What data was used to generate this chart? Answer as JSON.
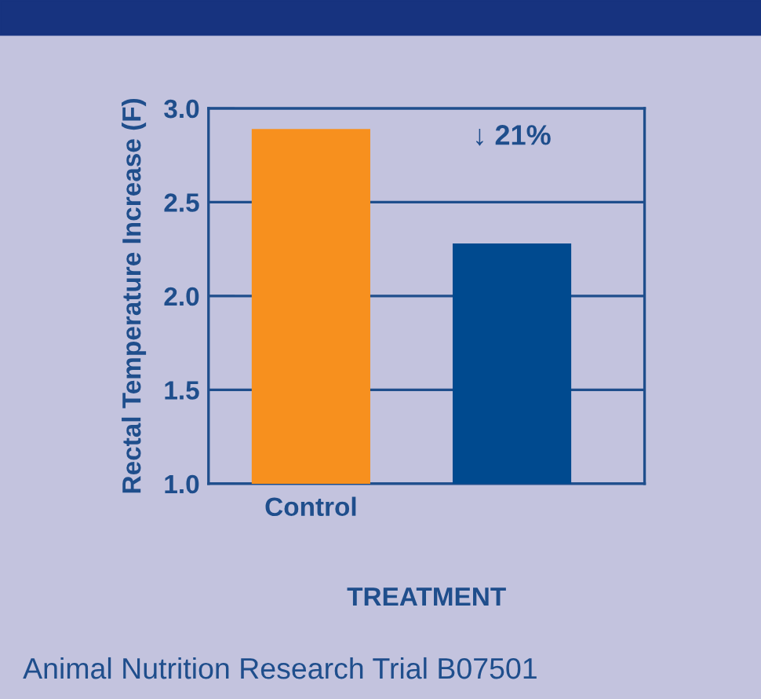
{
  "chart_data": {
    "type": "bar",
    "categories": [
      "Control",
      null
    ],
    "values": [
      2.89,
      2.28
    ],
    "colors": [
      "#f7901e",
      "#004a8f"
    ],
    "ylabel": "Rectal Temperature Increase (F)",
    "xlabel": "TREATMENT",
    "ylim": [
      1.0,
      3.0
    ],
    "yticks": [
      {
        "value": 1.0,
        "label": "1.0"
      },
      {
        "value": 1.5,
        "label": "1.5"
      },
      {
        "value": 2.0,
        "label": "2.0"
      },
      {
        "value": 2.5,
        "label": "2.5"
      },
      {
        "value": 3.0,
        "label": "3.0"
      }
    ],
    "grid": "y",
    "legend": false,
    "annotations": [
      "↓ 21%",
      "Animal Nutrition Research Trial B07501"
    ]
  }
}
